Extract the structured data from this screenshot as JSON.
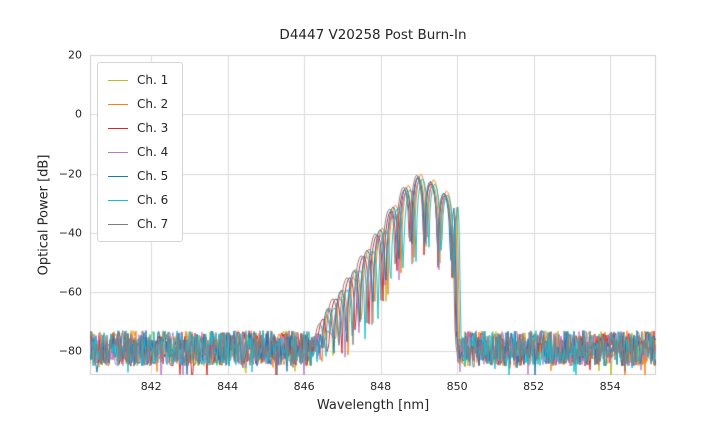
{
  "chart_data": {
    "type": "line",
    "title": "D4447 V20258 Post Burn-In",
    "xlabel": "Wavelength [nm]",
    "ylabel": "Optical Power [dB]",
    "xlim": [
      840.4,
      855.2
    ],
    "ylim": [
      -88,
      20
    ],
    "grid": true,
    "legend_position": "upper left",
    "xticks": [
      {
        "v": 842,
        "label": "842"
      },
      {
        "v": 844,
        "label": "844"
      },
      {
        "v": 846,
        "label": "846"
      },
      {
        "v": 848,
        "label": "848"
      },
      {
        "v": 850,
        "label": "850"
      },
      {
        "v": 852,
        "label": "852"
      },
      {
        "v": 854,
        "label": "854"
      }
    ],
    "yticks": [
      {
        "v": 20,
        "label": "20"
      },
      {
        "v": 0,
        "label": "0"
      },
      {
        "v": -20,
        "label": "−20"
      },
      {
        "v": -40,
        "label": "−40"
      },
      {
        "v": -60,
        "label": "−60"
      },
      {
        "v": -80,
        "label": "−80"
      }
    ],
    "noise_floor_dB": -79,
    "noise_spread_dB": 12,
    "peak_wavelength_nm": 849.0,
    "peak_power_dB": -21,
    "signal_band_nm": [
      846.3,
      850.0
    ],
    "envelope_points": [
      [
        846.2,
        -80
      ],
      [
        846.55,
        -67
      ],
      [
        846.9,
        -61
      ],
      [
        847.25,
        -54
      ],
      [
        847.6,
        -47
      ],
      [
        847.95,
        -40
      ],
      [
        848.3,
        -32
      ],
      [
        848.65,
        -25
      ],
      [
        849.0,
        -21
      ],
      [
        849.35,
        -23
      ],
      [
        849.7,
        -27
      ],
      [
        849.95,
        -29
      ],
      [
        850.02,
        -80
      ]
    ],
    "series": [
      {
        "name": "Ch. 1",
        "color": "#bcbd22",
        "dx": 0.02,
        "dy": -1.0,
        "period": 0.35,
        "seed": 11
      },
      {
        "name": "Ch. 2",
        "color": "#ff7f0e",
        "dx": 0.05,
        "dy": 0.8,
        "period": 0.345,
        "seed": 22
      },
      {
        "name": "Ch. 3",
        "color": "#d62728",
        "dx": -0.04,
        "dy": -0.5,
        "period": 0.36,
        "seed": 33
      },
      {
        "name": "Ch. 4",
        "color": "#b47cc7",
        "dx": 0.0,
        "dy": -1.5,
        "period": 0.35,
        "seed": 44
      },
      {
        "name": "Ch. 5",
        "color": "#1f77b4",
        "dx": -0.02,
        "dy": 0.0,
        "period": 0.34,
        "seed": 55
      },
      {
        "name": "Ch. 6",
        "color": "#17becf",
        "dx": 0.09,
        "dy": -0.8,
        "period": 0.332,
        "seed": 66
      },
      {
        "name": "Ch. 7",
        "color": "#7f7f7f",
        "dx": -0.06,
        "dy": 0.5,
        "period": 0.37,
        "seed": 77
      }
    ]
  }
}
